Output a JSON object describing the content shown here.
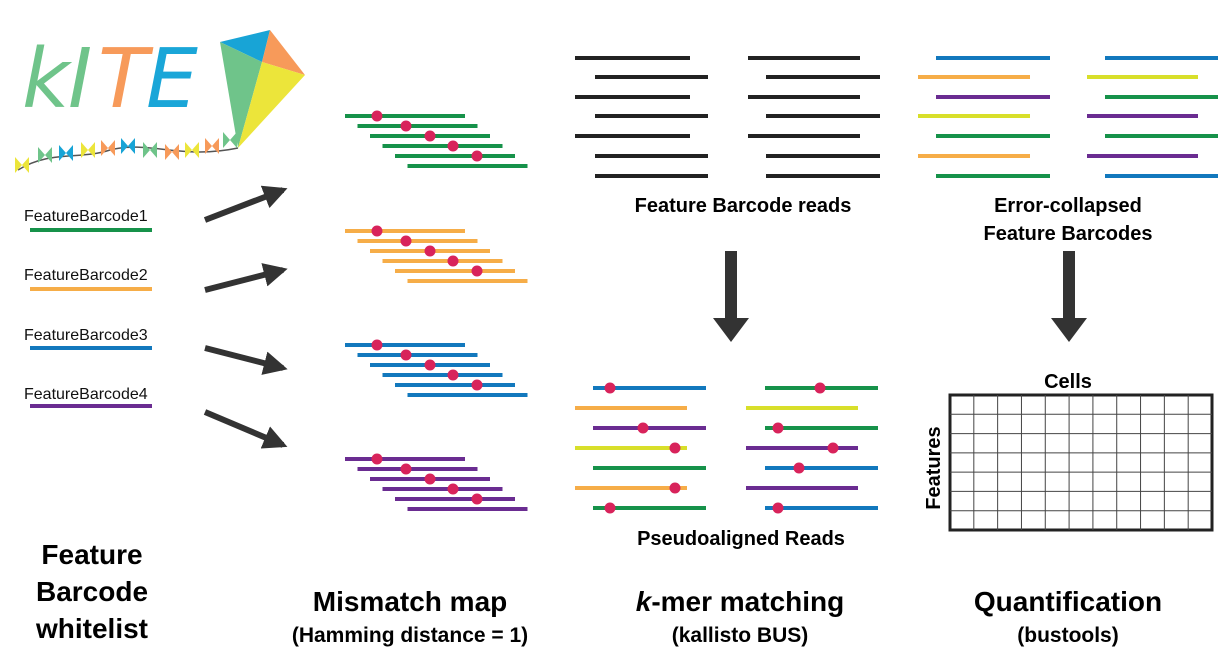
{
  "colors": {
    "green": "#16924a",
    "orange": "#f6ad48",
    "blue": "#1278bd",
    "purple": "#6a2c91",
    "yellow": "#d8df2a",
    "black": "#222222",
    "dot": "#d8235b",
    "logo_green": "#6fc48a",
    "logo_orange": "#f79a5a",
    "logo_blue": "#1aa6d8",
    "kite_yellow": "#ece53a",
    "kite_blue": "#18a4d6"
  },
  "logo": {
    "letters": [
      "k",
      "I",
      "T",
      "E"
    ]
  },
  "whitelist": {
    "items": [
      "FeatureBarcode1",
      "FeatureBarcode2",
      "FeatureBarcode3",
      "FeatureBarcode4"
    ],
    "caption_lines": [
      "Feature",
      "Barcode",
      "whitelist"
    ]
  },
  "mismatch": {
    "title": "Mismatch map",
    "subtitle": "(Hamming distance = 1)"
  },
  "reads": {
    "label": "Feature Barcode reads",
    "collapsed_label_lines": [
      "Error-collapsed",
      "Feature Barcodes"
    ]
  },
  "kmer": {
    "label": "Pseudoaligned Reads",
    "title_italic": "k",
    "title_rest": "-mer matching",
    "subtitle": "(kallisto BUS)"
  },
  "quant": {
    "title": "Quantification",
    "subtitle": "(bustools)",
    "matrix_x_label": "Cells",
    "matrix_y_label": "Features"
  }
}
